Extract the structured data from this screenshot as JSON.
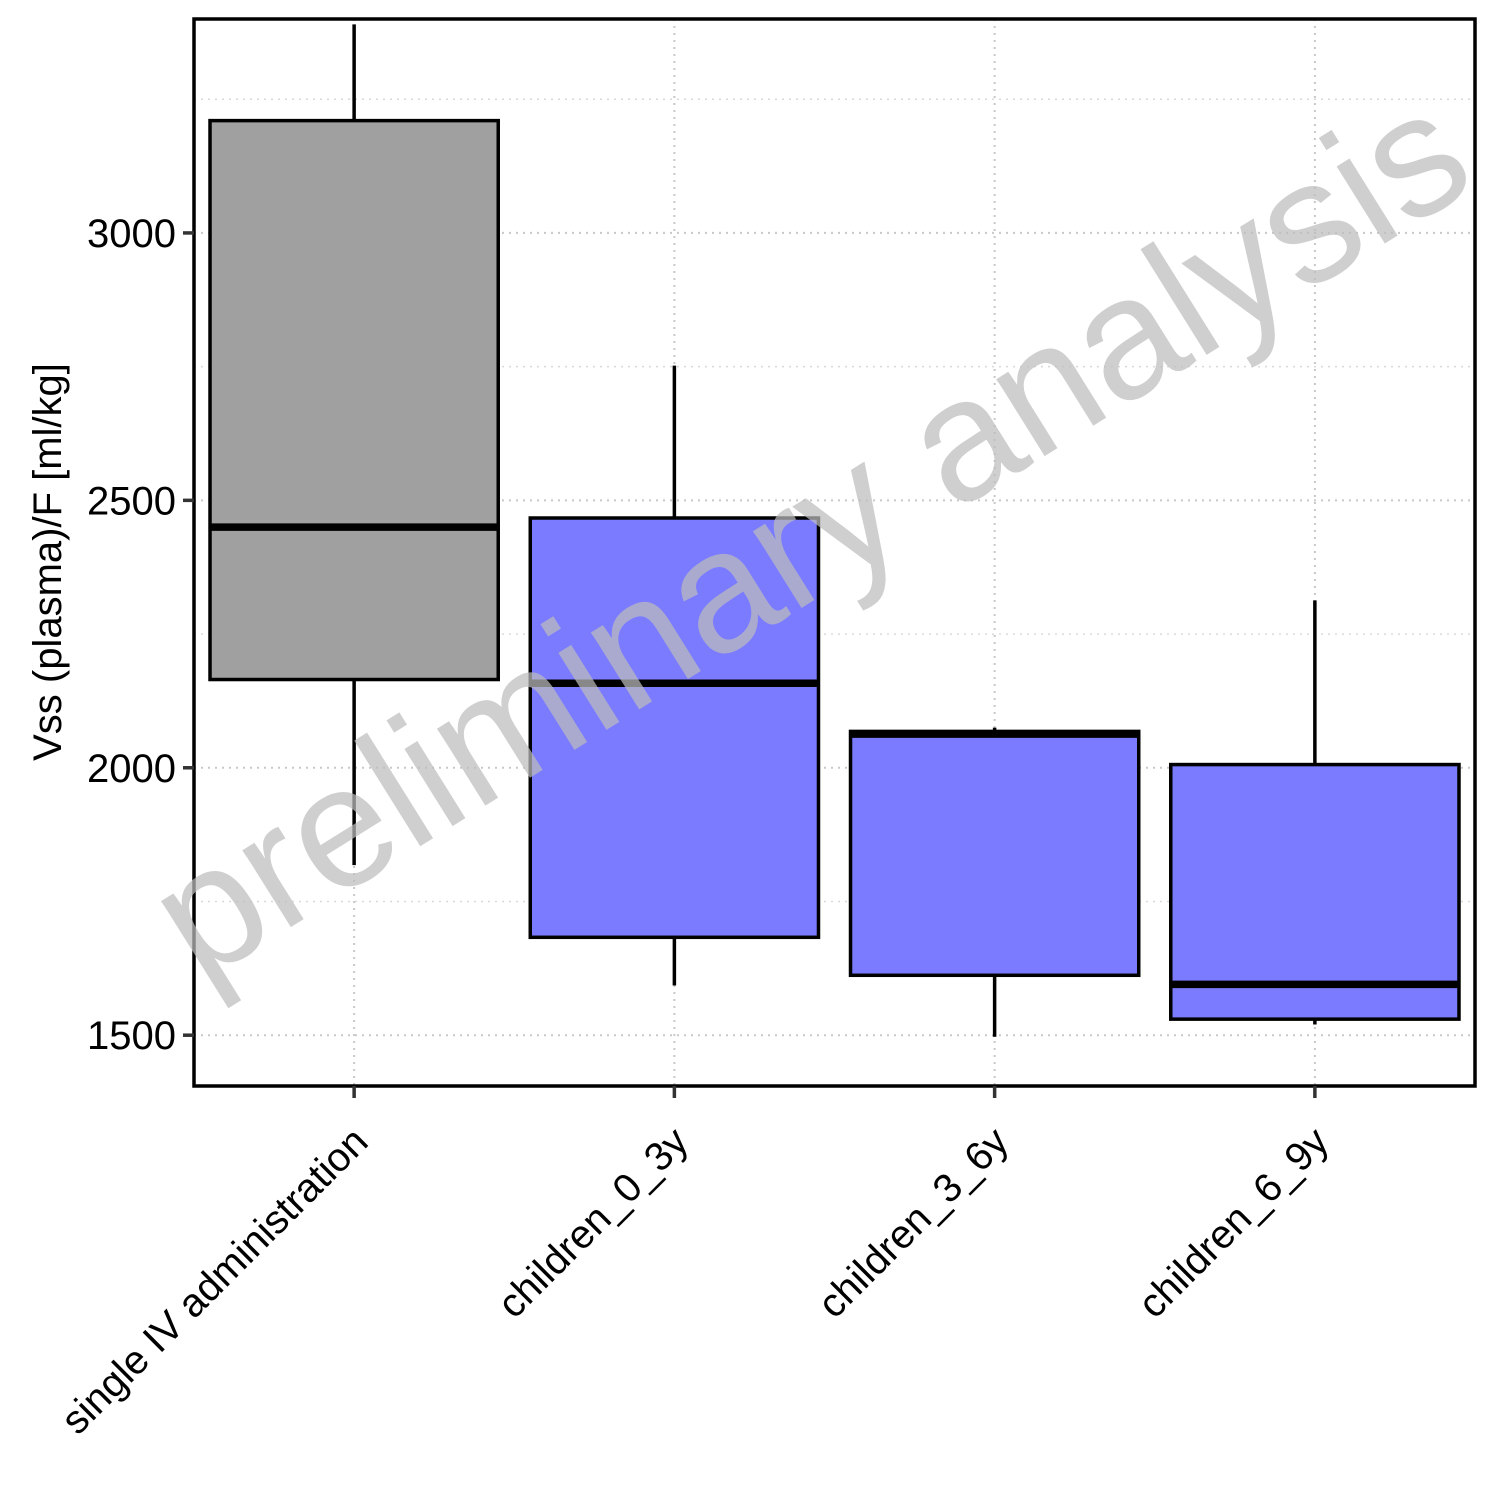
{
  "chart_data": {
    "type": "boxplot",
    "ylabel": "Vss (plasma)/F [ml/kg]",
    "xlabel": "",
    "ylim": [
      1405,
      3400
    ],
    "yticks": [
      1500,
      2000,
      2500,
      3000
    ],
    "grid": true,
    "watermark": "preliminary analysis",
    "categories": [
      "single IV administration",
      "children_0_3y",
      "children_3_6y",
      "children_6_9y"
    ],
    "boxes": [
      {
        "category": "single IV administration",
        "whisker_low": 1818,
        "q1": 2165,
        "median": 2450,
        "q3": 3210,
        "whisker_high": 3390,
        "color": "#a0a0a0"
      },
      {
        "category": "children_0_3y",
        "whisker_low": 1593,
        "q1": 1683,
        "median": 2158,
        "q3": 2467,
        "whisker_high": 2752,
        "color": "#7b7bff"
      },
      {
        "category": "children_3_6y",
        "whisker_low": 1497,
        "q1": 1612,
        "median": 2063,
        "q3": 2068,
        "whisker_high": 2075,
        "color": "#7b7bff"
      },
      {
        "category": "children_6_9y",
        "whisker_low": 1520,
        "q1": 1530,
        "median": 1595,
        "q3": 2006,
        "whisker_high": 2313,
        "color": "#7b7bff"
      }
    ]
  }
}
